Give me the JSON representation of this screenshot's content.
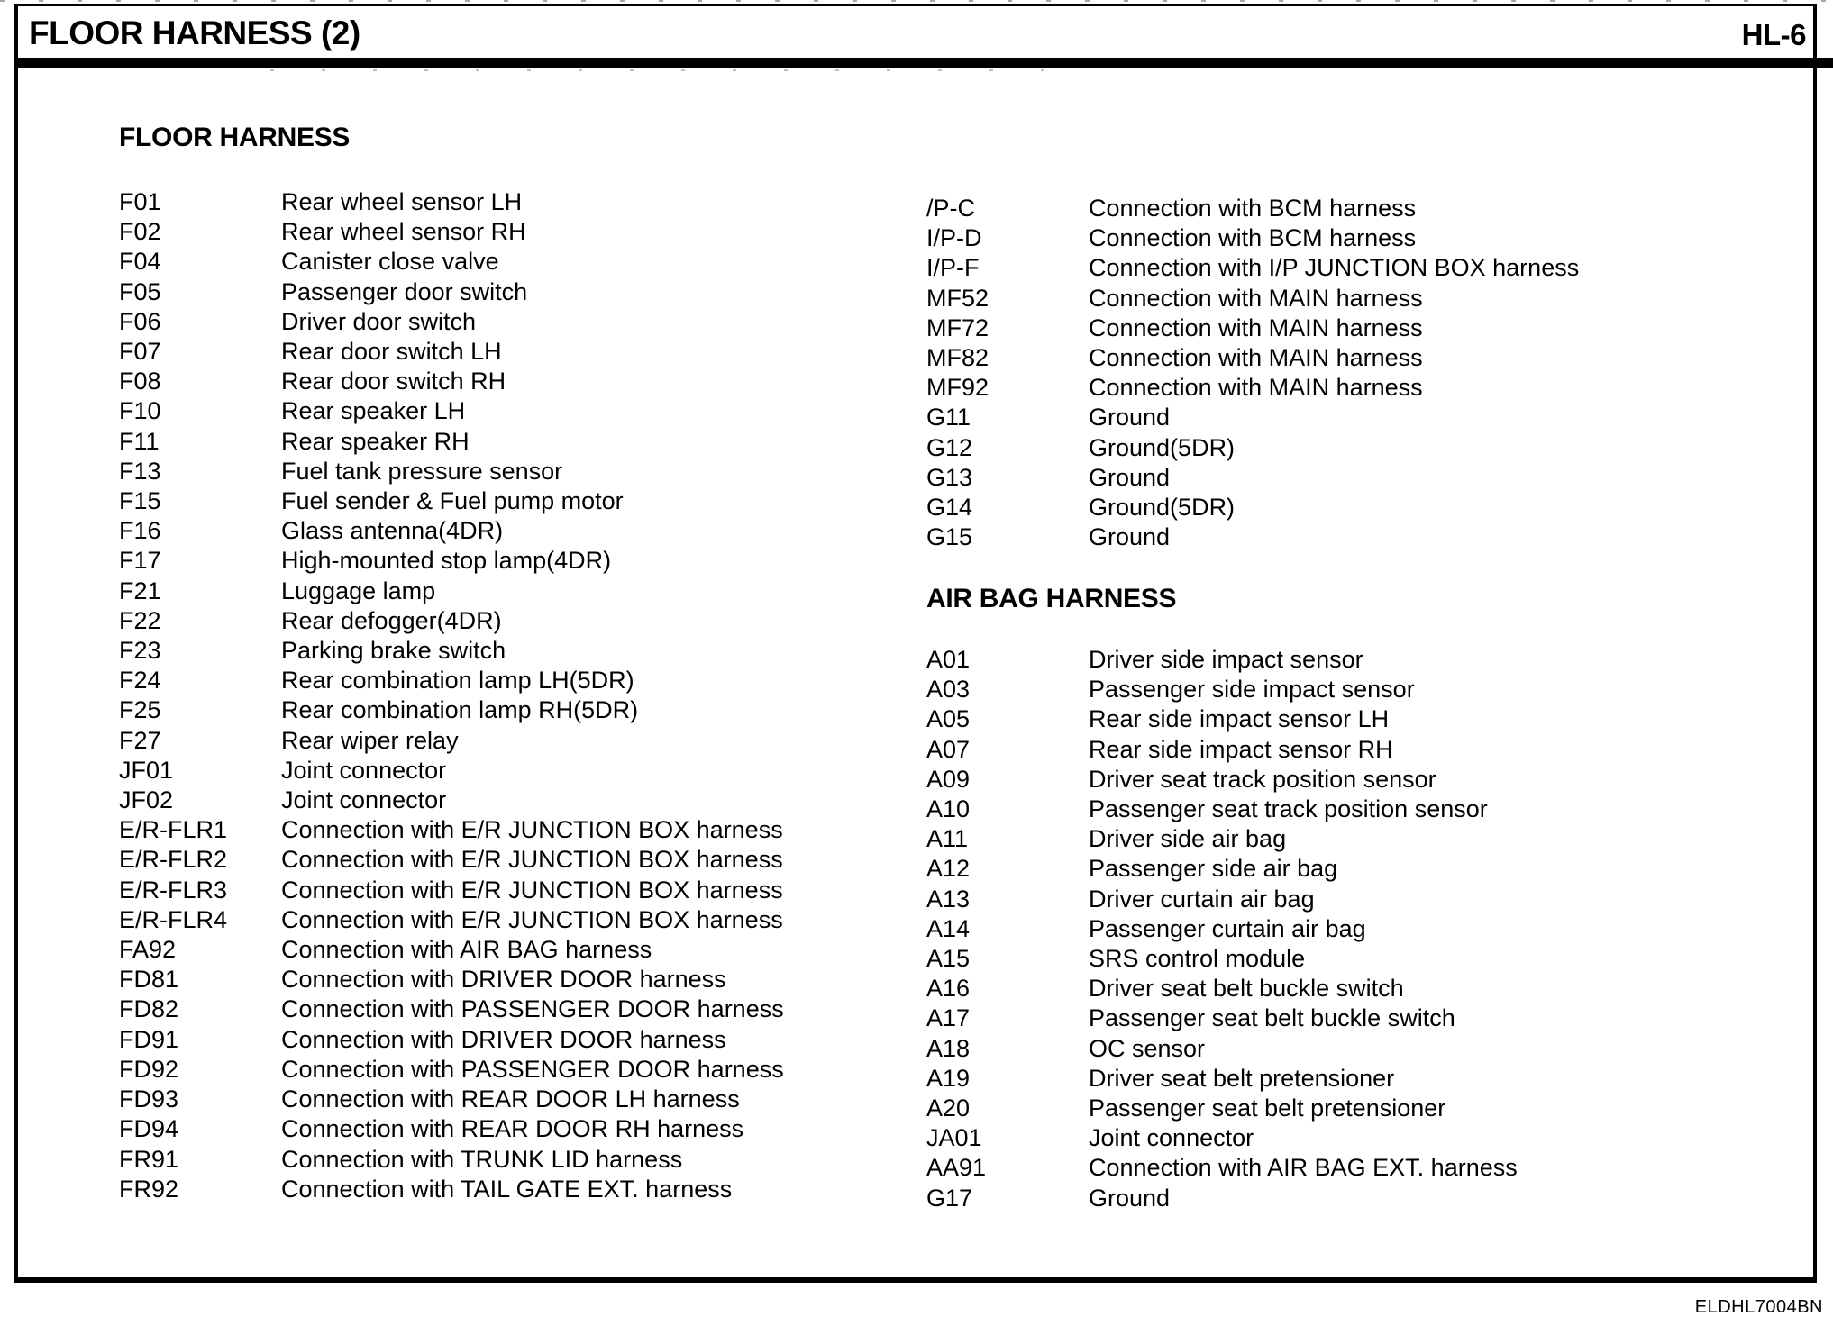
{
  "header": {
    "title": "FLOOR HARNESS (2)",
    "page_ref": "HL-6"
  },
  "left_column": {
    "heading": "FLOOR HARNESS",
    "items": [
      {
        "code": "F01",
        "desc": "Rear wheel sensor LH"
      },
      {
        "code": "F02",
        "desc": "Rear wheel sensor RH"
      },
      {
        "code": "F04",
        "desc": "Canister close valve"
      },
      {
        "code": "F05",
        "desc": "Passenger door switch"
      },
      {
        "code": "F06",
        "desc": "Driver door switch"
      },
      {
        "code": "F07",
        "desc": "Rear door switch LH"
      },
      {
        "code": "F08",
        "desc": "Rear door switch RH"
      },
      {
        "code": "F10",
        "desc": "Rear speaker LH"
      },
      {
        "code": "F11",
        "desc": "Rear speaker RH"
      },
      {
        "code": "F13",
        "desc": "Fuel tank pressure sensor"
      },
      {
        "code": "F15",
        "desc": "Fuel sender & Fuel pump motor"
      },
      {
        "code": "F16",
        "desc": "Glass antenna(4DR)"
      },
      {
        "code": "F17",
        "desc": "High-mounted stop lamp(4DR)"
      },
      {
        "code": "F21",
        "desc": "Luggage lamp"
      },
      {
        "code": "F22",
        "desc": "Rear defogger(4DR)"
      },
      {
        "code": "F23",
        "desc": "Parking brake switch"
      },
      {
        "code": "F24",
        "desc": "Rear combination lamp LH(5DR)"
      },
      {
        "code": "F25",
        "desc": "Rear combination lamp RH(5DR)"
      },
      {
        "code": "F27",
        "desc": "Rear wiper relay"
      },
      {
        "code": "JF01",
        "desc": "Joint connector"
      },
      {
        "code": "JF02",
        "desc": "Joint connector"
      },
      {
        "code": "E/R-FLR1",
        "desc": "Connection with E/R JUNCTION BOX harness"
      },
      {
        "code": "E/R-FLR2",
        "desc": "Connection with E/R JUNCTION BOX harness"
      },
      {
        "code": "E/R-FLR3",
        "desc": "Connection with E/R JUNCTION BOX harness"
      },
      {
        "code": "E/R-FLR4",
        "desc": "Connection with E/R JUNCTION BOX harness"
      },
      {
        "code": "FA92",
        "desc": "Connection with AIR BAG harness"
      },
      {
        "code": "FD81",
        "desc": "Connection with DRIVER DOOR harness"
      },
      {
        "code": "FD82",
        "desc": "Connection with PASSENGER DOOR harness"
      },
      {
        "code": "FD91",
        "desc": "Connection with DRIVER DOOR harness"
      },
      {
        "code": "FD92",
        "desc": "Connection with PASSENGER DOOR harness"
      },
      {
        "code": "FD93",
        "desc": "Connection with REAR DOOR LH harness"
      },
      {
        "code": "FD94",
        "desc": "Connection with REAR DOOR RH harness"
      },
      {
        "code": "FR91",
        "desc": "Connection with TRUNK LID harness"
      },
      {
        "code": "FR92",
        "desc": "Connection with TAIL GATE EXT. harness"
      }
    ]
  },
  "right_column": {
    "continuation_items": [
      {
        "code": "/P-C",
        "desc": "Connection with BCM harness"
      },
      {
        "code": "I/P-D",
        "desc": "Connection with BCM harness"
      },
      {
        "code": "I/P-F",
        "desc": "Connection with I/P JUNCTION BOX harness"
      },
      {
        "code": "MF52",
        "desc": "Connection with MAIN harness"
      },
      {
        "code": "MF72",
        "desc": "Connection with MAIN harness"
      },
      {
        "code": "MF82",
        "desc": "Connection with MAIN harness"
      },
      {
        "code": "MF92",
        "desc": "Connection with MAIN harness"
      },
      {
        "code": "G11",
        "desc": "Ground"
      },
      {
        "code": "G12",
        "desc": "Ground(5DR)"
      },
      {
        "code": "G13",
        "desc": "Ground"
      },
      {
        "code": "G14",
        "desc": "Ground(5DR)"
      },
      {
        "code": "G15",
        "desc": "Ground"
      }
    ],
    "airbag_heading": "AIR BAG HARNESS",
    "airbag_items": [
      {
        "code": "A01",
        "desc": "Driver side impact sensor"
      },
      {
        "code": "A03",
        "desc": "Passenger side impact sensor"
      },
      {
        "code": "A05",
        "desc": "Rear side impact sensor LH"
      },
      {
        "code": "A07",
        "desc": "Rear side impact sensor RH"
      },
      {
        "code": "A09",
        "desc": "Driver seat track position sensor"
      },
      {
        "code": "A10",
        "desc": "Passenger seat track position sensor"
      },
      {
        "code": "A11",
        "desc": "Driver side air bag"
      },
      {
        "code": "A12",
        "desc": "Passenger side air bag"
      },
      {
        "code": "A13",
        "desc": "Driver curtain air bag"
      },
      {
        "code": "A14",
        "desc": "Passenger curtain air bag"
      },
      {
        "code": "A15",
        "desc": "SRS control module"
      },
      {
        "code": "A16",
        "desc": "Driver seat belt buckle switch"
      },
      {
        "code": "A17",
        "desc": "Passenger seat belt buckle switch"
      },
      {
        "code": "A18",
        "desc": "OC sensor"
      },
      {
        "code": "A19",
        "desc": "Driver seat belt pretensioner"
      },
      {
        "code": "A20",
        "desc": "Passenger seat belt pretensioner"
      },
      {
        "code": "JA01",
        "desc": "Joint connector"
      },
      {
        "code": "AA91",
        "desc": "Connection with AIR BAG EXT. harness"
      },
      {
        "code": "G17",
        "desc": "Ground"
      }
    ]
  },
  "footer": {
    "code": "ELDHL7004BN"
  }
}
